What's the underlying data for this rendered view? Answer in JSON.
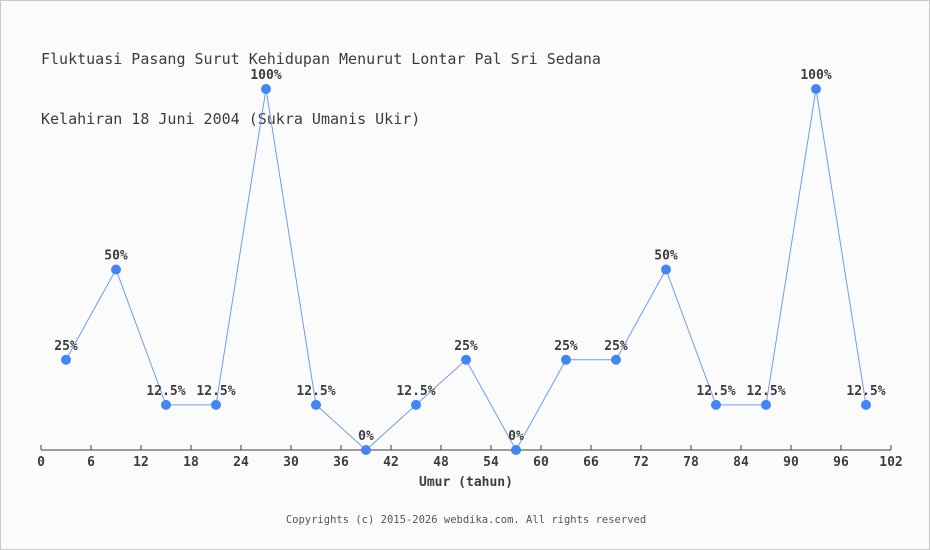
{
  "title": {
    "line1": "Fluktuasi Pasang Surut Kehidupan Menurut Lontar Pal Sri Sedana",
    "line2": "Kelahiran 18 Juni 2004 (Sukra Umanis Ukir)"
  },
  "footer": "Copyrights (c) 2015-2026 webdika.com. All rights reserved",
  "colors": {
    "marker": "#4285f4",
    "line": "#6d9eeb",
    "axis": "#3c3c3c",
    "text": "#3c3c3c",
    "footer_text": "#555555",
    "background": "#fbfbfb",
    "border": "#c9c9c9"
  },
  "chart_data": {
    "type": "line",
    "title": "Fluktuasi Pasang Surut Kehidupan Menurut Lontar Pal Sri Sedana Kelahiran 18 Juni 2004 (Sukra Umanis Ukir)",
    "x": [
      3,
      9,
      15,
      21,
      27,
      33,
      39,
      45,
      51,
      57,
      63,
      69,
      75,
      81,
      87,
      93,
      99
    ],
    "values": [
      25,
      50,
      12.5,
      12.5,
      100,
      12.5,
      0,
      12.5,
      25,
      0,
      25,
      25,
      50,
      12.5,
      12.5,
      100,
      12.5
    ],
    "point_labels": [
      "25%",
      "50%",
      "12.5%",
      "12.5%",
      "100%",
      "12.5%",
      "0%",
      "12.5%",
      "25%",
      "0%",
      "25%",
      "25%",
      "50%",
      "12.5%",
      "12.5%",
      "100%",
      "12.5%"
    ],
    "xlabel": "Umur (tahun)",
    "ylabel": "",
    "xlim": [
      0,
      102
    ],
    "ylim": [
      0,
      100
    ],
    "x_ticks": [
      0,
      6,
      12,
      18,
      24,
      30,
      36,
      42,
      48,
      54,
      60,
      66,
      72,
      78,
      84,
      90,
      96,
      102
    ],
    "grid": false,
    "legend": "none"
  }
}
